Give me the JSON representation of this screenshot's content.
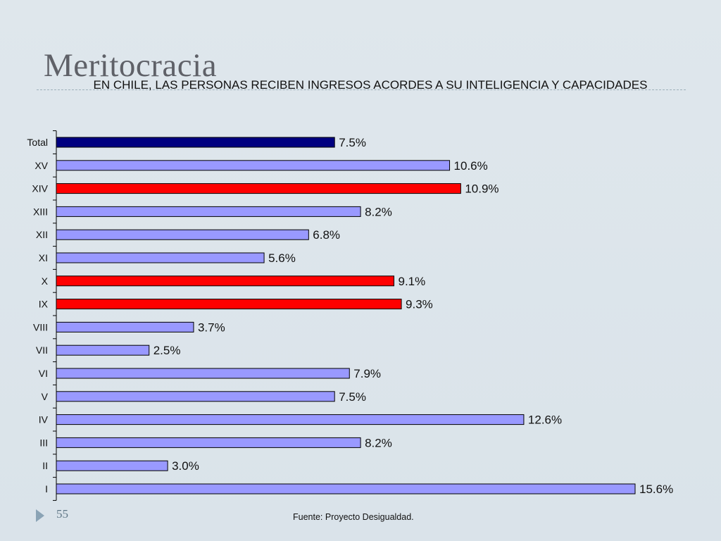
{
  "slide": {
    "title": "Meritocracia",
    "number": "55",
    "source": "Fuente: Proyecto Desigualdad."
  },
  "colors": {
    "total": "#000080",
    "highlight": "#ff0000",
    "default": "#9999ff",
    "outline": "#000000"
  },
  "chart_data": {
    "type": "bar",
    "orientation": "horizontal",
    "title": "EN CHILE, LAS PERSONAS RECIBEN INGRESOS ACORDES A SU INTELIGENCIA Y CAPACIDADES",
    "categories": [
      "Total",
      "XV",
      "XIV",
      "XIII",
      "XII",
      "XI",
      "X",
      "IX",
      "VIII",
      "VII",
      "VI",
      "V",
      "IV",
      "III",
      "II",
      "I"
    ],
    "values": [
      7.5,
      10.6,
      10.9,
      8.2,
      6.8,
      5.6,
      9.1,
      9.3,
      3.7,
      2.5,
      7.9,
      7.5,
      12.6,
      8.2,
      3.0,
      15.6
    ],
    "value_labels": [
      "7.5%",
      "10.6%",
      "10.9%",
      "8.2%",
      "6.8%",
      "5.6%",
      "9.1%",
      "9.3%",
      "3.7%",
      "2.5%",
      "7.9%",
      "7.5%",
      "12.6%",
      "8.2%",
      "3.0%",
      "15.6%"
    ],
    "bar_colors": [
      "#000080",
      "#9999ff",
      "#ff0000",
      "#9999ff",
      "#9999ff",
      "#9999ff",
      "#ff0000",
      "#ff0000",
      "#9999ff",
      "#9999ff",
      "#9999ff",
      "#9999ff",
      "#9999ff",
      "#9999ff",
      "#9999ff",
      "#9999ff"
    ],
    "xlim": [
      0,
      15.6
    ],
    "xlabel": "",
    "ylabel": "",
    "grid": false,
    "legend": "none"
  }
}
